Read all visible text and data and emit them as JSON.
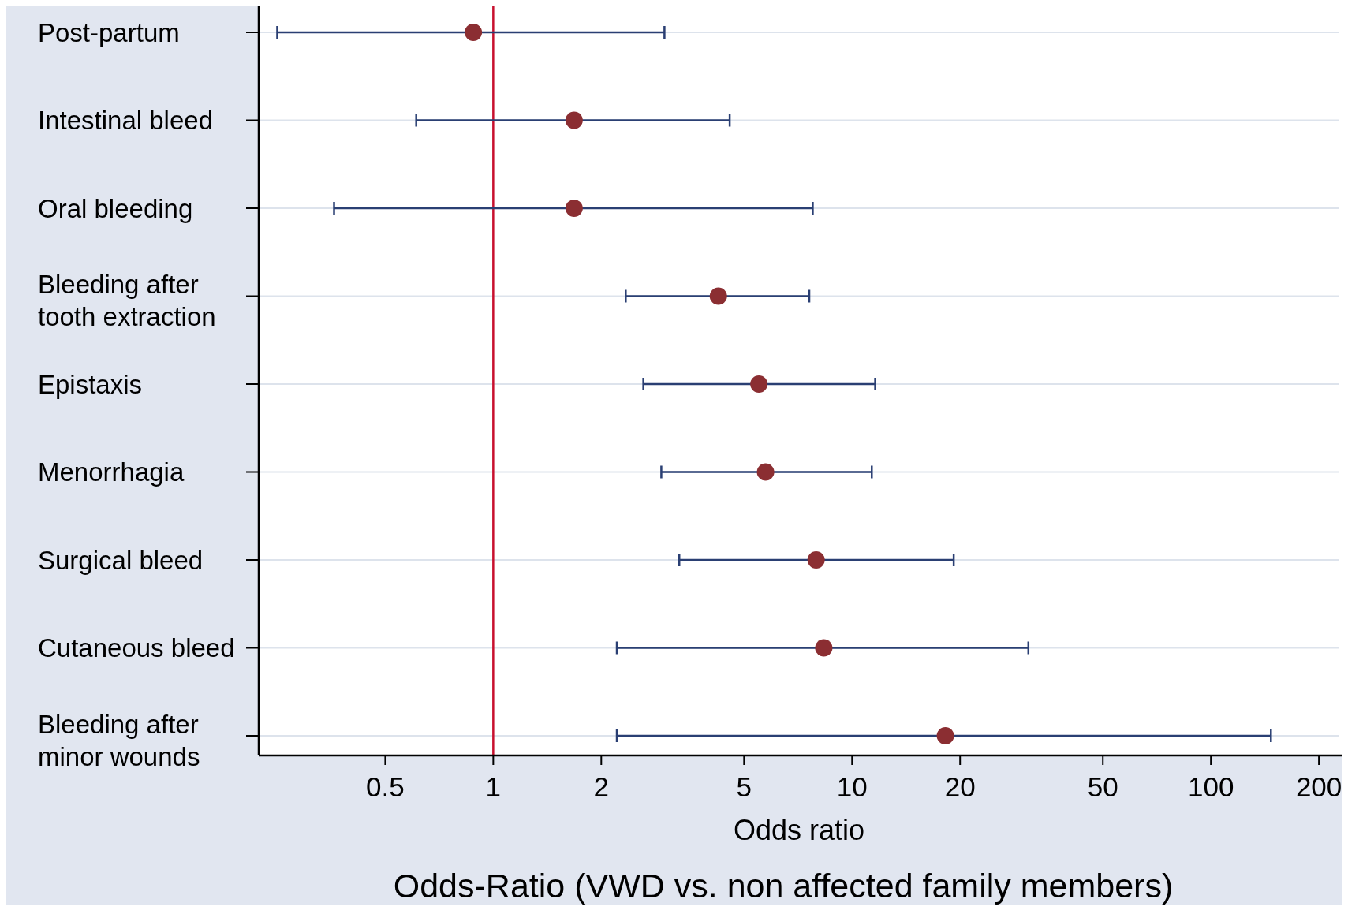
{
  "chart_data": {
    "type": "scatter",
    "orientation": "horizontal",
    "title": "Odds-Ratio (VWD vs. non affected family members)",
    "xlabel": "Odds ratio",
    "categories": [
      "Post-partum",
      "Intestinal bleed",
      "Oral bleeding",
      "Bleeding after tooth extraction",
      "Epistaxis",
      "Menorrhagia",
      "Surgical bleed",
      "Cutaneous bleed",
      "Bleeding after minor wounds"
    ],
    "series": [
      {
        "color": "#8b2e32",
        "values": [
          0.88,
          1.68,
          1.68,
          4.24,
          5.5,
          5.74,
          7.94,
          8.34,
          18.2
        ],
        "errors": [
          [
            0.25,
            3.0
          ],
          [
            0.61,
            4.56
          ],
          [
            0.36,
            7.77
          ],
          [
            2.34,
            7.6
          ],
          [
            2.62,
            11.6
          ],
          [
            2.94,
            11.35
          ],
          [
            3.3,
            19.2
          ],
          [
            2.21,
            31.0
          ],
          [
            2.21,
            147
          ]
        ]
      }
    ],
    "log": "x",
    "xlim": [
      0.222,
      228
    ],
    "xticks": [
      0.5,
      1,
      2,
      5,
      10,
      20,
      50,
      100,
      200
    ],
    "grid": "y",
    "marker": "circle",
    "ref_lines": [
      {
        "axis": "x",
        "value": 1,
        "color": "#c8102e"
      }
    ]
  }
}
